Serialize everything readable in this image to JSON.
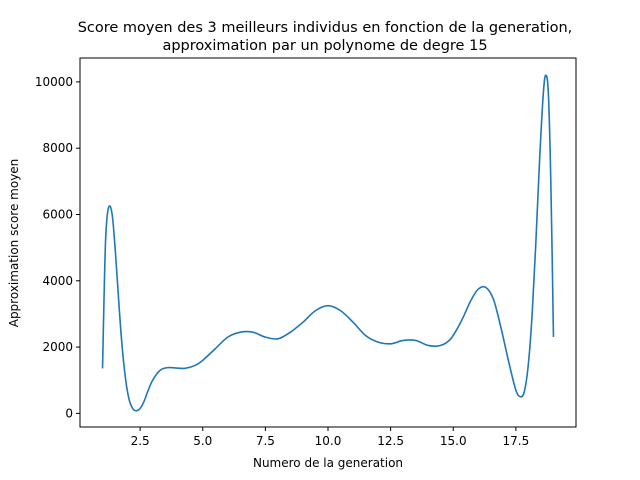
{
  "chart_data": {
    "type": "line",
    "title_line1": "Score moyen des 3 meilleurs individus en fonction de la generation,",
    "title_line2": "approximation par un polynome de degre 15",
    "xlabel": "Numero de la generation",
    "ylabel": "Approximation score moyen",
    "xlim": [
      0.1,
      19.9
    ],
    "ylim": [
      -411,
      10721
    ],
    "xticks": [
      2.5,
      5.0,
      7.5,
      10.0,
      12.5,
      15.0,
      17.5
    ],
    "xtick_labels": [
      "2.5",
      "5.0",
      "7.5",
      "10.0",
      "12.5",
      "15.0",
      "17.5"
    ],
    "yticks": [
      0,
      2000,
      4000,
      6000,
      8000,
      10000
    ],
    "ytick_labels": [
      "0",
      "2000",
      "4000",
      "6000",
      "8000",
      "10000"
    ],
    "grid": false,
    "series": [
      {
        "color": "#1f77b4",
        "x": [
          1.0,
          1.06,
          1.12,
          1.2,
          1.3,
          1.4,
          1.5,
          1.6,
          1.75,
          1.9,
          2.05,
          2.2,
          2.35,
          2.5,
          2.65,
          2.8,
          3.0,
          3.3,
          3.6,
          3.9,
          4.3,
          4.7,
          5.0,
          5.5,
          6.0,
          6.5,
          7.0,
          7.5,
          8.0,
          8.5,
          9.0,
          9.5,
          10.0,
          10.5,
          11.0,
          11.5,
          12.0,
          12.5,
          13.0,
          13.5,
          14.0,
          14.5,
          14.9,
          15.3,
          15.7,
          16.0,
          16.3,
          16.6,
          16.9,
          17.2,
          17.5,
          17.7,
          17.85,
          18.0,
          18.15,
          18.3,
          18.45,
          18.6,
          18.7,
          18.8,
          18.9,
          19.0
        ],
        "y": [
          1380,
          3500,
          5200,
          6050,
          6250,
          5900,
          5000,
          3900,
          2300,
          1150,
          450,
          150,
          80,
          150,
          350,
          650,
          1000,
          1300,
          1380,
          1370,
          1360,
          1450,
          1600,
          1950,
          2300,
          2450,
          2450,
          2300,
          2250,
          2450,
          2750,
          3100,
          3250,
          3100,
          2750,
          2350,
          2150,
          2100,
          2200,
          2200,
          2050,
          2050,
          2250,
          2750,
          3400,
          3750,
          3800,
          3450,
          2600,
          1600,
          700,
          500,
          700,
          1500,
          3000,
          5200,
          7700,
          9700,
          10200,
          9600,
          6800,
          2330
        ]
      }
    ]
  }
}
